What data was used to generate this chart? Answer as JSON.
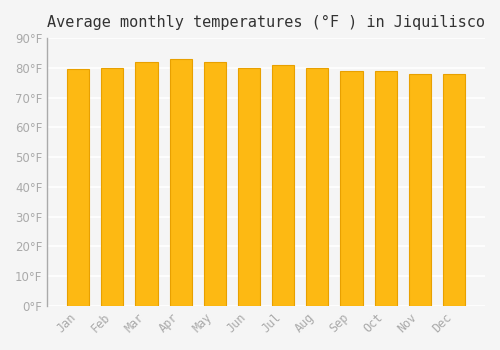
{
  "title": "Average monthly temperatures (°F ) in Jiquilisco",
  "months": [
    "Jan",
    "Feb",
    "Mar",
    "Apr",
    "May",
    "Jun",
    "Jul",
    "Aug",
    "Sep",
    "Oct",
    "Nov",
    "Dec"
  ],
  "values": [
    79.5,
    80.0,
    82.0,
    83.0,
    82.0,
    80.0,
    81.0,
    80.0,
    79.0,
    79.0,
    78.0,
    78.0
  ],
  "bar_color": "#FDB913",
  "bar_edge_color": "#E8A000",
  "background_color": "#F5F5F5",
  "grid_color": "#FFFFFF",
  "tick_label_color": "#AAAAAA",
  "title_color": "#333333",
  "ylim": [
    0,
    90
  ],
  "yticks": [
    0,
    10,
    20,
    30,
    40,
    50,
    60,
    70,
    80,
    90
  ],
  "title_fontsize": 11,
  "tick_fontsize": 8.5
}
